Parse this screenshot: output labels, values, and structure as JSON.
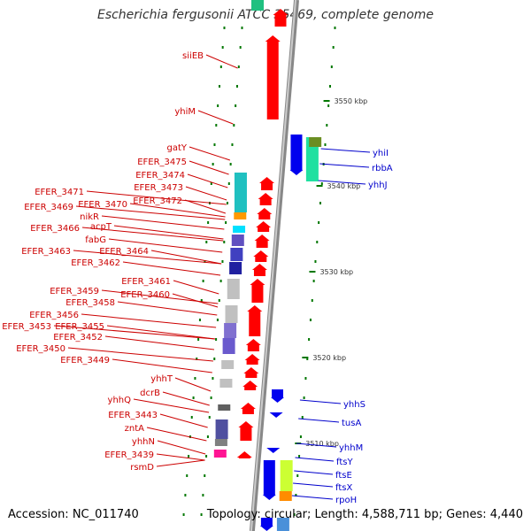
{
  "title": "Escherichia fergusonii ATCC 35469, complete genome",
  "footer": {
    "accession": "Accession: NC_011740",
    "topology": "Topology: circular; Length: 4,588,711 bp; Genes: 4,440"
  },
  "colors": {
    "reverse_label": "#cc0000",
    "forward_label": "#0000cc",
    "backbone": "#888888",
    "tick": "#007700",
    "reverse_gene": "#ff0000",
    "forward_gene": "#0000ee"
  },
  "ticks": [
    "3550 kbp",
    "3540 kbp",
    "3530 kbp",
    "3520 kbp",
    "3510 kbp"
  ],
  "left_labels": [
    "siiEB",
    "yhiM",
    "gatY",
    "EFER_3475",
    "EFER_3474",
    "EFER_3473",
    "EFER_3472",
    "EFER_3471",
    "EFER_3470",
    "EFER_3469",
    "nikR",
    "acpT",
    "EFER_3466",
    "fabG",
    "EFER_3464",
    "EFER_3463",
    "EFER_3462",
    "EFER_3461",
    "EFER_3460",
    "EFER_3459",
    "EFER_3458",
    "EFER_3456",
    "EFER_3455",
    "EFER_3453",
    "EFER_3452",
    "EFER_3450",
    "EFER_3449",
    "yhhT",
    "dcrB",
    "yhhQ",
    "EFER_3443",
    "zntA",
    "yhhN",
    "EFER_3439",
    "rsmD"
  ],
  "right_labels": [
    "yhiI",
    "rbbA",
    "yhhJ",
    "yhhS",
    "tusA",
    "yhhM",
    "ftsY",
    "ftsE",
    "ftsX",
    "rpoH"
  ]
}
